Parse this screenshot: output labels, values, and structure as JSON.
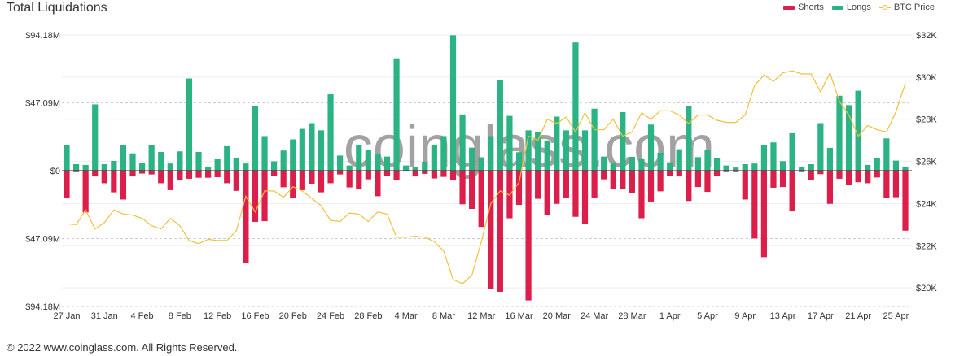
{
  "title": "Total Liquidations",
  "legend": [
    {
      "label": "Shorts",
      "color": "#dc1e4a"
    },
    {
      "label": "Longs",
      "color": "#2bb383"
    },
    {
      "label": "BTC Price",
      "color": "#f0c040"
    }
  ],
  "watermark": "coinglass.com",
  "footer": "© 2022 www.coinglass.com. All Rights Reserved.",
  "chart_data": {
    "type": "bar",
    "title": "Total Liquidations",
    "start_date": "27 Jan",
    "x_tick_labels": [
      "27 Jan",
      "31 Jan",
      "4 Feb",
      "8 Feb",
      "12 Feb",
      "16 Feb",
      "20 Feb",
      "24 Feb",
      "28 Feb",
      "4 Mar",
      "8 Mar",
      "12 Mar",
      "16 Mar",
      "20 Mar",
      "24 Mar",
      "28 Mar",
      "1 Apr",
      "5 Apr",
      "9 Apr",
      "13 Apr",
      "17 Apr",
      "21 Apr",
      "25 Apr"
    ],
    "x_tick_every_days": 4,
    "left_axis": {
      "ticks": [
        "$94.18M",
        "$47.09M",
        "$0",
        "$47.09M",
        "$94.18M"
      ],
      "range_millions": [
        -94.18,
        94.18
      ]
    },
    "right_axis": {
      "ticks": [
        "$32K",
        "$30K",
        "$28K",
        "$26K",
        "$24K",
        "$22K",
        "$20K"
      ],
      "range_thousands": [
        19.5,
        32
      ]
    },
    "series": [
      {
        "name": "Longs",
        "unit": "USD millions",
        "values": [
          18,
          4.5,
          4,
          46,
          4.5,
          6.8,
          18,
          12,
          5.6,
          18,
          13,
          5,
          13.4,
          64,
          13,
          2.6,
          7.9,
          17,
          8.7,
          5,
          45,
          24,
          6.5,
          14,
          21.7,
          29,
          33,
          28,
          53,
          10.5,
          3.6,
          17.6,
          14.5,
          11.6,
          9.8,
          78,
          3.6,
          2.6,
          6.2,
          18,
          24,
          94,
          39,
          16,
          9.3,
          24,
          63,
          38,
          12.8,
          28,
          27,
          21,
          37.5,
          28,
          89,
          28,
          43,
          9.8,
          5,
          40.6,
          9.6,
          7.9,
          32,
          12.4,
          5.8,
          14.9,
          45,
          9.4,
          14.5,
          8.8,
          3.6,
          2.2,
          4.5,
          5,
          17.7,
          19.6,
          6.6,
          26,
          2.8,
          4.5,
          33,
          15.8,
          52,
          45.5,
          55.5,
          4,
          8.5,
          22.4,
          7,
          2.6
        ]
      },
      {
        "name": "Shorts",
        "unit": "USD millions",
        "values": [
          19,
          1,
          29,
          4,
          8.7,
          15,
          20,
          4,
          2,
          2.6,
          8.7,
          13.5,
          6.8,
          5.6,
          4.9,
          4.9,
          4.5,
          8.7,
          14,
          64,
          35.5,
          35,
          3.6,
          11.5,
          19,
          13.5,
          9,
          15,
          8.7,
          2.6,
          11.6,
          13,
          6,
          17.7,
          3.6,
          6.8,
          0.5,
          4,
          2.2,
          5.4,
          4.3,
          6.8,
          23.3,
          26.5,
          39,
          82,
          84,
          33,
          23.7,
          90,
          19.5,
          31,
          23,
          18.6,
          32,
          37,
          18.6,
          6,
          12.4,
          12.4,
          15.6,
          33,
          21.4,
          14.3,
          3.6,
          4,
          21,
          11.3,
          14.7,
          3.4,
          1,
          1,
          20,
          47,
          60,
          11.8,
          11.3,
          28,
          1,
          6.2,
          2.4,
          23,
          5.6,
          9.6,
          8,
          8.7,
          4.7,
          18.8,
          18.4,
          41.6
        ]
      },
      {
        "name": "BTC Price",
        "unit": "USD thousands",
        "values": [
          23.04,
          23.0,
          23.7,
          22.8,
          23.1,
          23.7,
          23.5,
          23.45,
          23.3,
          22.95,
          22.8,
          23.3,
          22.95,
          22.24,
          22.1,
          22.3,
          22.25,
          22.25,
          22.7,
          24.35,
          23.6,
          24.6,
          24.6,
          24.3,
          24.8,
          24.6,
          24.25,
          23.9,
          23.2,
          23.15,
          23.55,
          23.5,
          23.15,
          23.6,
          23.5,
          22.4,
          22.4,
          22.45,
          22.4,
          22.2,
          21.75,
          20.4,
          20.2,
          20.6,
          22.2,
          24.0,
          24.6,
          24.4,
          25.0,
          27.2,
          27.0,
          28.0,
          27.8,
          28.1,
          27.4,
          28.3,
          27.5,
          27.5,
          28.0,
          27.2,
          27.4,
          28.3,
          28.0,
          28.4,
          28.4,
          28.2,
          27.8,
          28.2,
          28.2,
          27.95,
          27.85,
          27.85,
          28.2,
          29.6,
          30.1,
          29.8,
          30.2,
          30.3,
          30.15,
          30.15,
          29.3,
          30.2,
          28.85,
          28.2,
          27.2,
          27.7,
          27.5,
          27.4,
          28.35,
          29.7
        ]
      }
    ],
    "grid": true,
    "legend_position": "top-right"
  }
}
